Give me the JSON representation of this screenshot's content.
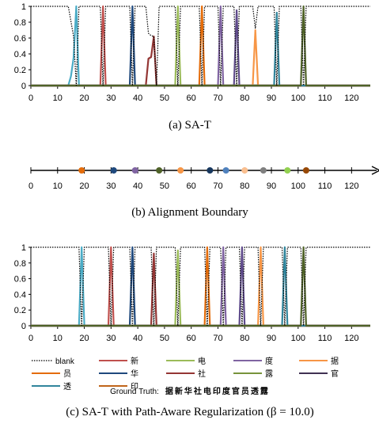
{
  "chart_data": [
    {
      "type": "line",
      "caption": "(a)  SA-T",
      "xlim": [
        0,
        127
      ],
      "ylim": [
        0,
        1
      ],
      "xticks": [
        0,
        10,
        20,
        30,
        40,
        50,
        60,
        70,
        80,
        90,
        100,
        110,
        120
      ],
      "yticks": [
        "0",
        "0.2",
        "0.4",
        "0.6",
        "0.8",
        "1"
      ],
      "blank": [
        [
          0,
          1
        ],
        [
          14,
          1
        ],
        [
          16,
          0.62
        ],
        [
          17,
          0
        ],
        [
          18,
          1
        ],
        [
          26,
          1
        ],
        [
          27,
          0
        ],
        [
          28,
          1
        ],
        [
          37,
          1
        ],
        [
          38,
          0
        ],
        [
          39,
          1
        ],
        [
          43,
          1
        ],
        [
          44,
          0.66
        ],
        [
          45,
          0.63
        ],
        [
          46,
          0.62
        ],
        [
          47,
          0
        ],
        [
          48,
          1
        ],
        [
          54,
          1
        ],
        [
          55,
          0
        ],
        [
          56,
          1
        ],
        [
          63,
          1
        ],
        [
          64,
          0
        ],
        [
          65,
          1
        ],
        [
          70,
          1
        ],
        [
          71,
          0
        ],
        [
          72,
          1
        ],
        [
          76,
          1
        ],
        [
          77,
          0
        ],
        [
          78,
          1
        ],
        [
          83,
          1
        ],
        [
          84,
          0.72
        ],
        [
          85,
          1
        ],
        [
          91,
          1
        ],
        [
          92,
          0
        ],
        [
          93,
          1
        ],
        [
          101,
          1
        ],
        [
          102,
          0
        ],
        [
          103,
          1
        ],
        [
          127,
          1
        ]
      ],
      "spikes": [
        {
          "name": "据",
          "color": "#4bacc6",
          "pts": [
            [
              14,
              0
            ],
            [
              15,
              0.12
            ],
            [
              16,
              0.35
            ],
            [
              17,
              1
            ],
            [
              18,
              0
            ]
          ]
        },
        {
          "name": "新",
          "color": "#c0504d",
          "pts": [
            [
              26,
              0
            ],
            [
              27,
              1
            ],
            [
              28,
              0
            ]
          ]
        },
        {
          "name": "华",
          "color": "#1f497d",
          "pts": [
            [
              37,
              0
            ],
            [
              38,
              1
            ],
            [
              39,
              0
            ]
          ]
        },
        {
          "name": "社",
          "color": "#943634",
          "pts": [
            [
              43,
              0
            ],
            [
              44,
              0.34
            ],
            [
              45,
              0.36
            ],
            [
              46,
              0.62
            ],
            [
              47,
              0
            ]
          ]
        },
        {
          "name": "电",
          "color": "#9bbb59",
          "pts": [
            [
              54,
              0
            ],
            [
              55,
              1
            ],
            [
              56,
              0
            ]
          ]
        },
        {
          "name": "印",
          "color": "#e46c0a",
          "pts": [
            [
              63,
              0
            ],
            [
              64,
              1
            ],
            [
              65,
              0
            ]
          ]
        },
        {
          "name": "度",
          "color": "#8064a2",
          "pts": [
            [
              70,
              0
            ],
            [
              71,
              1
            ],
            [
              72,
              0
            ]
          ]
        },
        {
          "name": "官",
          "color": "#5f4b8b",
          "pts": [
            [
              76,
              0
            ],
            [
              77,
              0.95
            ],
            [
              78,
              0
            ]
          ]
        },
        {
          "name": "员",
          "color": "#f79646",
          "pts": [
            [
              83,
              0
            ],
            [
              84,
              0.7
            ],
            [
              85,
              0
            ]
          ]
        },
        {
          "name": "透",
          "color": "#31859c",
          "pts": [
            [
              91,
              0
            ],
            [
              92,
              0.92
            ],
            [
              93,
              0
            ]
          ]
        },
        {
          "name": "露",
          "color": "#4f6228",
          "pts": [
            [
              101,
              0
            ],
            [
              102,
              1
            ],
            [
              103,
              0
            ]
          ]
        }
      ]
    },
    {
      "type": "scatter",
      "caption": "(b)  Alignment Boundary",
      "xlim": [
        0,
        127
      ],
      "xticks": [
        0,
        10,
        20,
        30,
        40,
        50,
        60,
        70,
        80,
        90,
        100,
        110,
        120
      ],
      "points": [
        {
          "x": 19,
          "color": "#e46c0a"
        },
        {
          "x": 31,
          "color": "#1f497d"
        },
        {
          "x": 39,
          "color": "#8064a2"
        },
        {
          "x": 48,
          "color": "#4f6228"
        },
        {
          "x": 56,
          "color": "#f79646"
        },
        {
          "x": 67,
          "color": "#17375e"
        },
        {
          "x": 73,
          "color": "#4f81bd"
        },
        {
          "x": 80,
          "color": "#fabf8f"
        },
        {
          "x": 87,
          "color": "#7f7f7f"
        },
        {
          "x": 96,
          "color": "#92d050"
        },
        {
          "x": 103,
          "color": "#974806"
        }
      ]
    },
    {
      "type": "line",
      "caption": "(c)  SA-T with Path-Aware Regularization (β = 10.0)",
      "xlim": [
        0,
        127
      ],
      "ylim": [
        0,
        1
      ],
      "xticks": [
        0,
        10,
        20,
        30,
        40,
        50,
        60,
        70,
        80,
        90,
        100,
        110,
        120
      ],
      "yticks": [
        "0",
        "0.2",
        "0.4",
        "0.6",
        "0.8",
        "1"
      ],
      "blank": [
        [
          0,
          1
        ],
        [
          18,
          1
        ],
        [
          19,
          0
        ],
        [
          20,
          1
        ],
        [
          29,
          1
        ],
        [
          30,
          0
        ],
        [
          31,
          1
        ],
        [
          37,
          1
        ],
        [
          38,
          0
        ],
        [
          39,
          1
        ],
        [
          45,
          1
        ],
        [
          46,
          0
        ],
        [
          47,
          1
        ],
        [
          54,
          1
        ],
        [
          55,
          0
        ],
        [
          56,
          1
        ],
        [
          65,
          1
        ],
        [
          66,
          0
        ],
        [
          67,
          1
        ],
        [
          71,
          1
        ],
        [
          72,
          0
        ],
        [
          73,
          1
        ],
        [
          78,
          1
        ],
        [
          79,
          0
        ],
        [
          80,
          1
        ],
        [
          85,
          1
        ],
        [
          86,
          0
        ],
        [
          87,
          1
        ],
        [
          94,
          1
        ],
        [
          95,
          0
        ],
        [
          96,
          1
        ],
        [
          101,
          1
        ],
        [
          102,
          0
        ],
        [
          103,
          1
        ],
        [
          127,
          1
        ]
      ],
      "spikes": [
        {
          "name": "据",
          "color": "#4bacc6",
          "pts": [
            [
              18,
              0
            ],
            [
              19,
              1
            ],
            [
              20,
              0
            ]
          ]
        },
        {
          "name": "新",
          "color": "#c0504d",
          "pts": [
            [
              29,
              0
            ],
            [
              30,
              1
            ],
            [
              31,
              0
            ]
          ]
        },
        {
          "name": "华",
          "color": "#1f497d",
          "pts": [
            [
              37,
              0
            ],
            [
              38,
              1
            ],
            [
              39,
              0
            ]
          ]
        },
        {
          "name": "社",
          "color": "#943634",
          "pts": [
            [
              45,
              0
            ],
            [
              46,
              0.92
            ],
            [
              47,
              0
            ]
          ]
        },
        {
          "name": "电",
          "color": "#9bbb59",
          "pts": [
            [
              54,
              0
            ],
            [
              55,
              0.96
            ],
            [
              56,
              0
            ]
          ]
        },
        {
          "name": "印",
          "color": "#e46c0a",
          "pts": [
            [
              65,
              0
            ],
            [
              66,
              1
            ],
            [
              67,
              0
            ]
          ]
        },
        {
          "name": "度",
          "color": "#8064a2",
          "pts": [
            [
              71,
              0
            ],
            [
              72,
              1
            ],
            [
              73,
              0
            ]
          ]
        },
        {
          "name": "官",
          "color": "#5f4b8b",
          "pts": [
            [
              78,
              0
            ],
            [
              79,
              1
            ],
            [
              80,
              0
            ]
          ]
        },
        {
          "name": "员",
          "color": "#f79646",
          "pts": [
            [
              85,
              0
            ],
            [
              86,
              1
            ],
            [
              87,
              0
            ]
          ]
        },
        {
          "name": "透",
          "color": "#31859c",
          "pts": [
            [
              94,
              0
            ],
            [
              95,
              1
            ],
            [
              96,
              0
            ]
          ]
        },
        {
          "name": "露",
          "color": "#4f6228",
          "pts": [
            [
              101,
              0
            ],
            [
              102,
              1
            ],
            [
              103,
              0
            ]
          ]
        }
      ],
      "legend": [
        {
          "label": "blank",
          "color": "#000000",
          "dotted": true
        },
        {
          "label": "新",
          "color": "#c0504d"
        },
        {
          "label": "电",
          "color": "#9bbb59"
        },
        {
          "label": "度",
          "color": "#8064a2"
        },
        {
          "label": "据",
          "color": "#f79646"
        },
        {
          "label": "员",
          "color": "#e46c0a"
        },
        {
          "label": "华",
          "color": "#1f497d"
        },
        {
          "label": "社",
          "color": "#943634"
        },
        {
          "label": "露",
          "color": "#77933c"
        },
        {
          "label": "官",
          "color": "#403152"
        },
        {
          "label": "透",
          "color": "#31859c"
        },
        {
          "label": "印",
          "color": "#c0651a"
        }
      ],
      "ground_truth_label": "Ground Truth:",
      "ground_truth_text": "据新华社电印度官员透露"
    }
  ]
}
